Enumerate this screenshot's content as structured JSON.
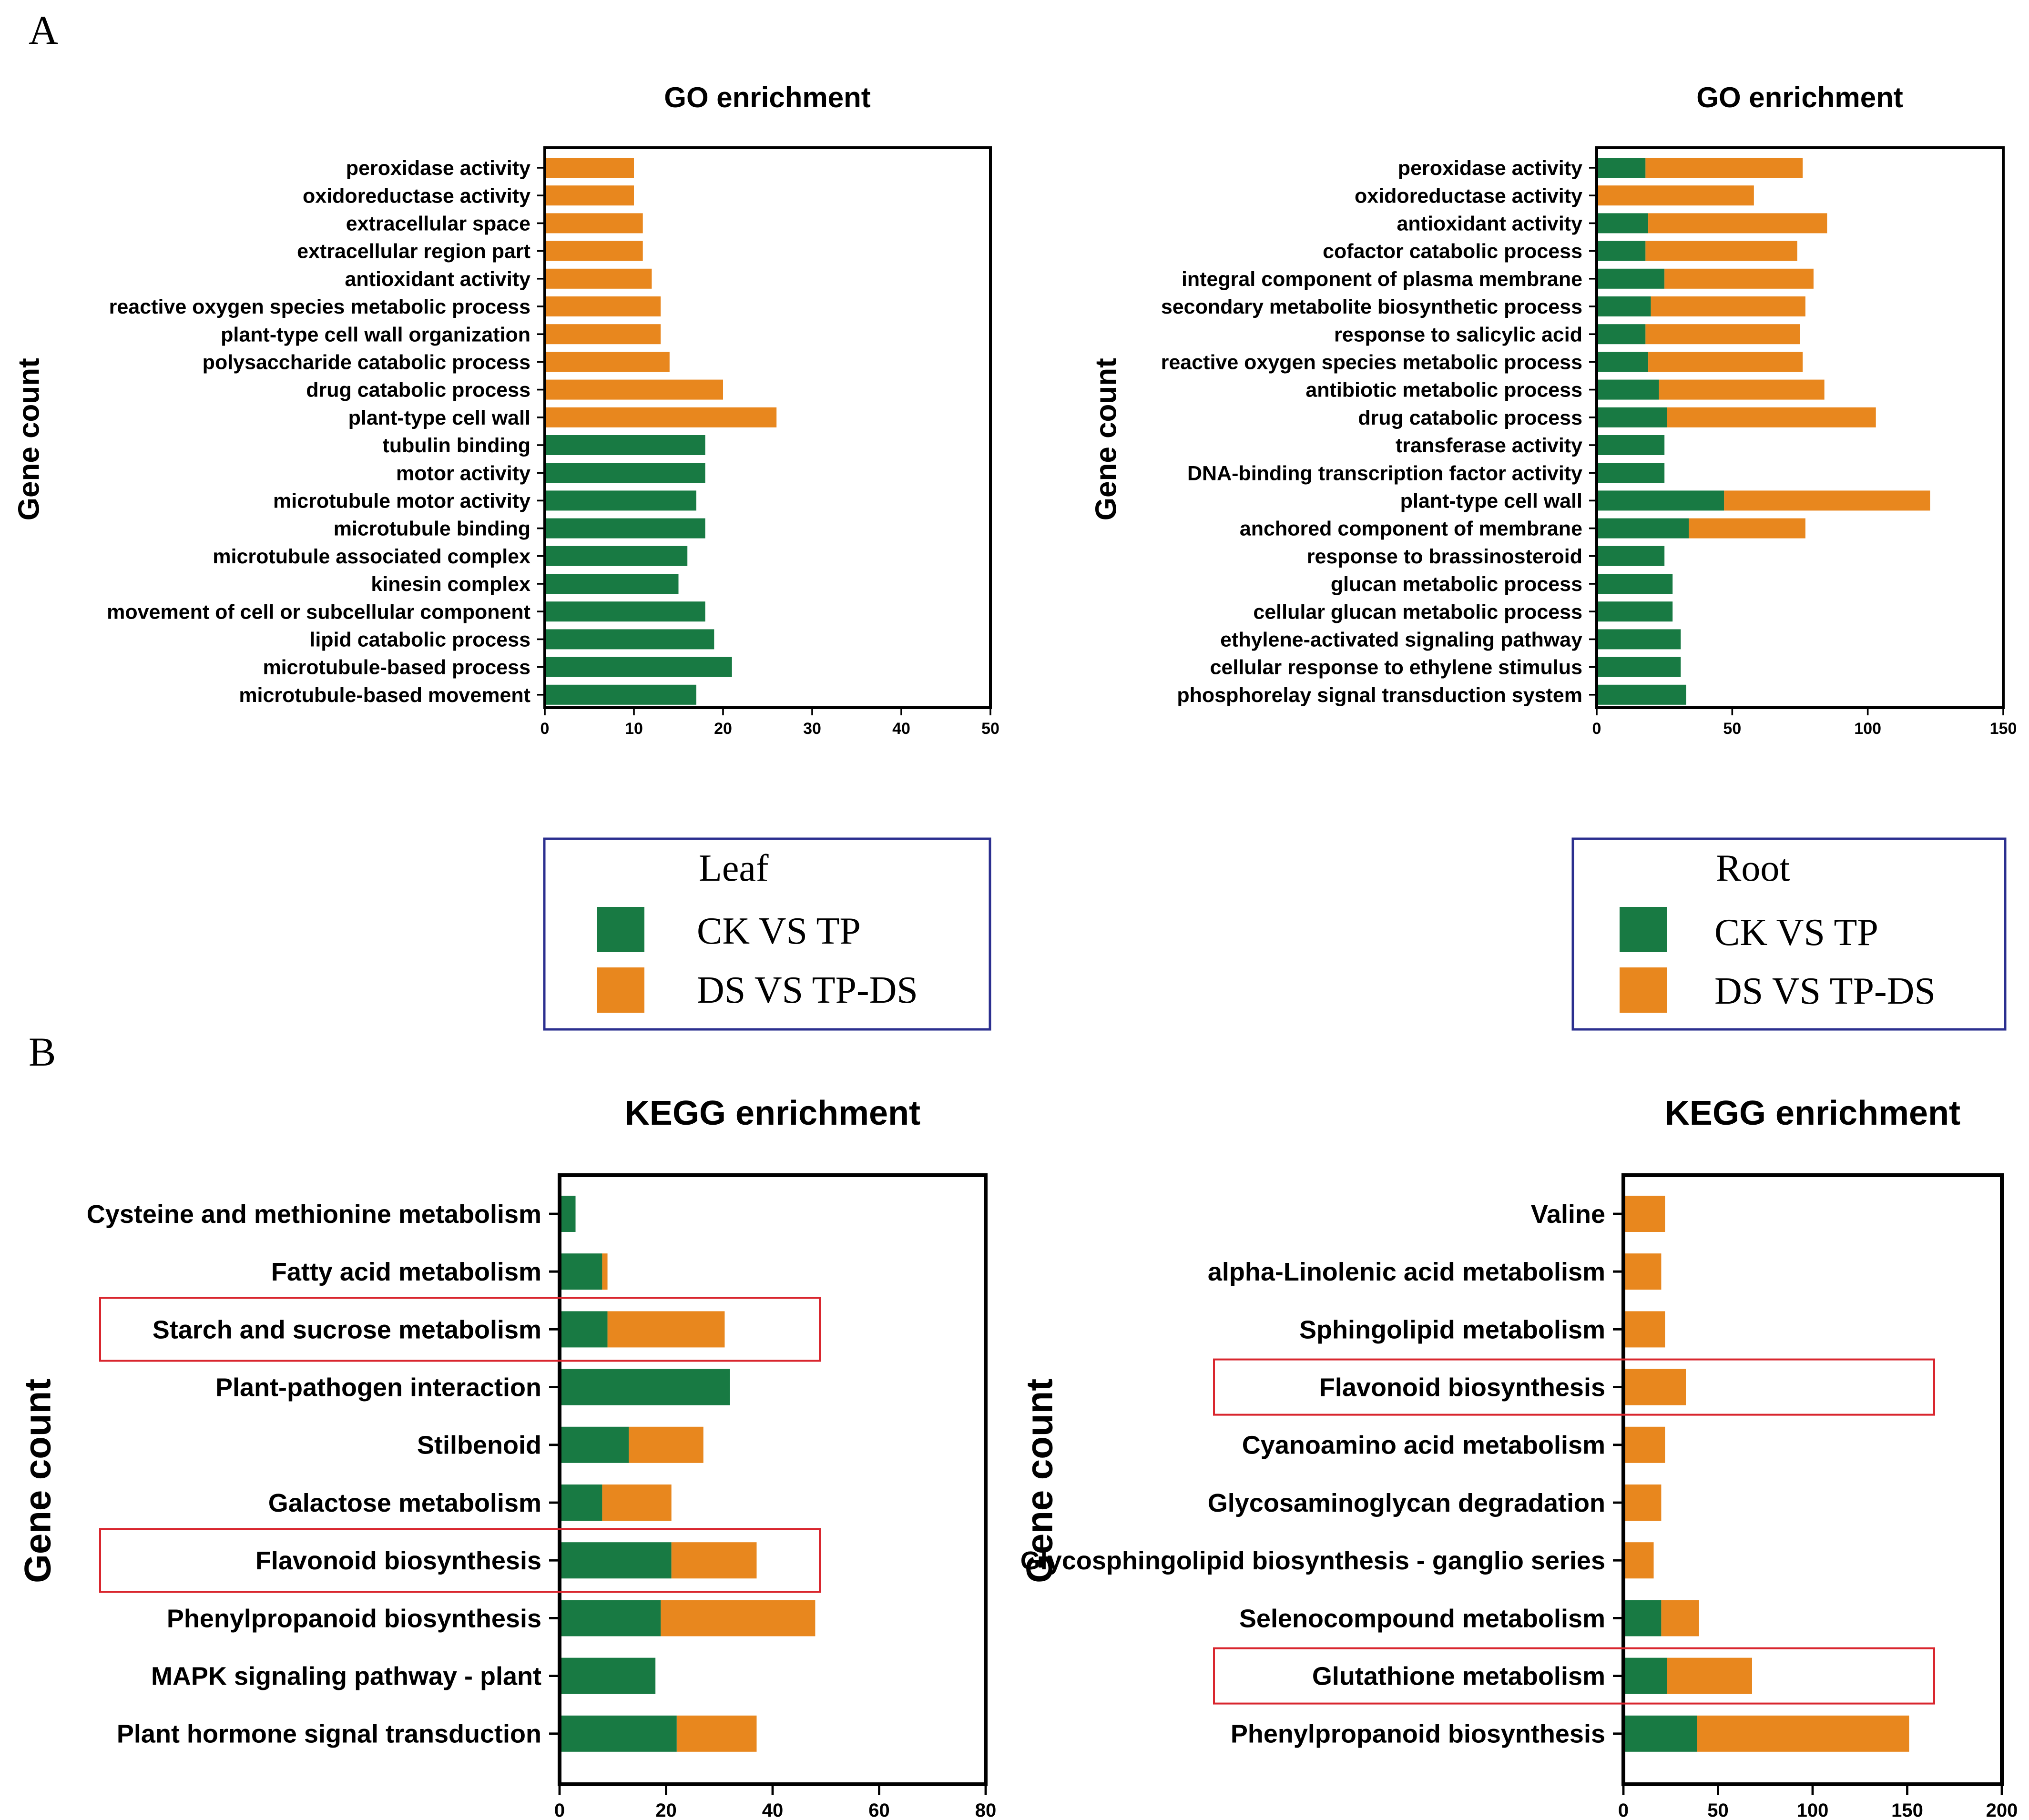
{
  "panel_labels": {
    "a": "A",
    "b": "B"
  },
  "colors": {
    "green": "#187a43",
    "orange": "#e8871e",
    "frame": "#000000",
    "legend_border": "#2b2f8f",
    "highlight": "#d9262e"
  },
  "legends": [
    {
      "title": "Leaf",
      "items": [
        "CK VS TP",
        "DS VS TP-DS"
      ]
    },
    {
      "title": "Root",
      "items": [
        "CK VS TP",
        "DS VS TP-DS"
      ]
    }
  ],
  "chart_data": [
    {
      "id": "go-leaf",
      "type": "bar",
      "orientation": "horizontal",
      "stacked": true,
      "title": "GO enrichment",
      "ylabel": "Gene count",
      "xlabel": "",
      "xlim": [
        0,
        50
      ],
      "xticks": [
        0,
        10,
        20,
        30,
        40,
        50
      ],
      "categories": [
        "peroxidase activity",
        "oxidoreductase activity",
        "extracellular space",
        "extracellular region part",
        "antioxidant activity",
        "reactive oxygen species metabolic process",
        "plant-type cell wall organization",
        "polysaccharide catabolic process",
        "drug catabolic process",
        "plant-type cell wall",
        "tubulin binding",
        "motor activity",
        "microtubule motor activity",
        "microtubule binding",
        "microtubule associated complex",
        "kinesin complex",
        "movement of cell or subcellular component",
        "lipid catabolic process",
        "microtubule-based process",
        "microtubule-based movement"
      ],
      "series": [
        {
          "name": "CK VS TP",
          "values": [
            0,
            0,
            0,
            0,
            0,
            0,
            0,
            0,
            0,
            0,
            18,
            18,
            17,
            18,
            16,
            15,
            18,
            19,
            21,
            17
          ]
        },
        {
          "name": "DS VS TP-DS",
          "values": [
            10,
            10,
            11,
            11,
            12,
            13,
            13,
            14,
            20,
            26,
            0,
            0,
            0,
            0,
            0,
            0,
            0,
            0,
            0,
            0
          ]
        }
      ],
      "highlighted": []
    },
    {
      "id": "go-root",
      "type": "bar",
      "orientation": "horizontal",
      "stacked": true,
      "title": "GO enrichment",
      "ylabel": "Gene count",
      "xlabel": "",
      "xlim": [
        0,
        150
      ],
      "xticks": [
        0,
        50,
        100,
        150
      ],
      "categories": [
        "peroxidase activity",
        "oxidoreductase activity",
        "antioxidant activity",
        "cofactor catabolic process",
        "integral component of plasma membrane",
        "secondary metabolite biosynthetic process",
        "response to salicylic acid",
        "reactive oxygen species metabolic process",
        "antibiotic metabolic process",
        "drug catabolic process",
        "transferase activity",
        "DNA-binding transcription factor activity",
        "plant-type cell wall",
        "anchored component of membrane",
        "response to brassinosteroid",
        "glucan metabolic process",
        "cellular glucan metabolic process",
        "ethylene-activated signaling pathway",
        "cellular response to ethylene stimulus",
        "phosphorelay signal transduction system"
      ],
      "series": [
        {
          "name": "CK VS TP",
          "values": [
            18,
            0,
            19,
            18,
            25,
            20,
            18,
            19,
            23,
            26,
            25,
            25,
            47,
            34,
            25,
            28,
            28,
            31,
            31,
            33
          ]
        },
        {
          "name": "DS VS TP-DS",
          "values": [
            58,
            58,
            66,
            56,
            55,
            57,
            57,
            57,
            61,
            77,
            0,
            0,
            76,
            43,
            0,
            0,
            0,
            0,
            0,
            0
          ]
        }
      ],
      "highlighted": []
    },
    {
      "id": "kegg-leaf",
      "type": "bar",
      "orientation": "horizontal",
      "stacked": true,
      "title": "KEGG enrichment",
      "ylabel": "Gene count",
      "xlabel": "",
      "xlim": [
        0,
        80
      ],
      "xticks": [
        0,
        20,
        40,
        60,
        80
      ],
      "categories": [
        "Cysteine and methionine metabolism",
        "Fatty acid metabolism",
        "Starch and sucrose metabolism",
        "Plant-pathogen interaction",
        "Stilbenoid",
        "Galactose metabolism",
        "Flavonoid biosynthesis",
        "Phenylpropanoid biosynthesis",
        "MAPK signaling pathway - plant",
        "Plant hormone signal transduction"
      ],
      "series": [
        {
          "name": "CK VS TP",
          "values": [
            3,
            8,
            9,
            32,
            13,
            8,
            21,
            19,
            18,
            22
          ]
        },
        {
          "name": "DS VS TP-DS",
          "values": [
            0,
            1,
            22,
            0,
            14,
            13,
            16,
            29,
            0,
            15
          ]
        }
      ],
      "highlighted": [
        2,
        6
      ]
    },
    {
      "id": "kegg-root",
      "type": "bar",
      "orientation": "horizontal",
      "stacked": true,
      "title": "KEGG enrichment",
      "ylabel": "Gene count",
      "xlabel": "",
      "xlim": [
        0,
        200
      ],
      "xticks": [
        0,
        50,
        100,
        150,
        200
      ],
      "categories": [
        "Valine",
        "alpha-Linolenic acid metabolism",
        "Sphingolipid metabolism",
        "Flavonoid biosynthesis",
        "Cyanoamino acid metabolism",
        "Glycosaminoglycan degradation",
        "Glycosphingolipid biosynthesis - ganglio series",
        "Selenocompound metabolism",
        "Glutathione metabolism",
        "Phenylpropanoid biosynthesis"
      ],
      "series": [
        {
          "name": "CK VS TP",
          "values": [
            0,
            0,
            0,
            0,
            0,
            0,
            0,
            20,
            23,
            39
          ]
        },
        {
          "name": "DS VS TP-DS",
          "values": [
            22,
            20,
            22,
            33,
            22,
            20,
            16,
            20,
            45,
            112
          ]
        }
      ],
      "highlighted": [
        3,
        8
      ]
    }
  ]
}
